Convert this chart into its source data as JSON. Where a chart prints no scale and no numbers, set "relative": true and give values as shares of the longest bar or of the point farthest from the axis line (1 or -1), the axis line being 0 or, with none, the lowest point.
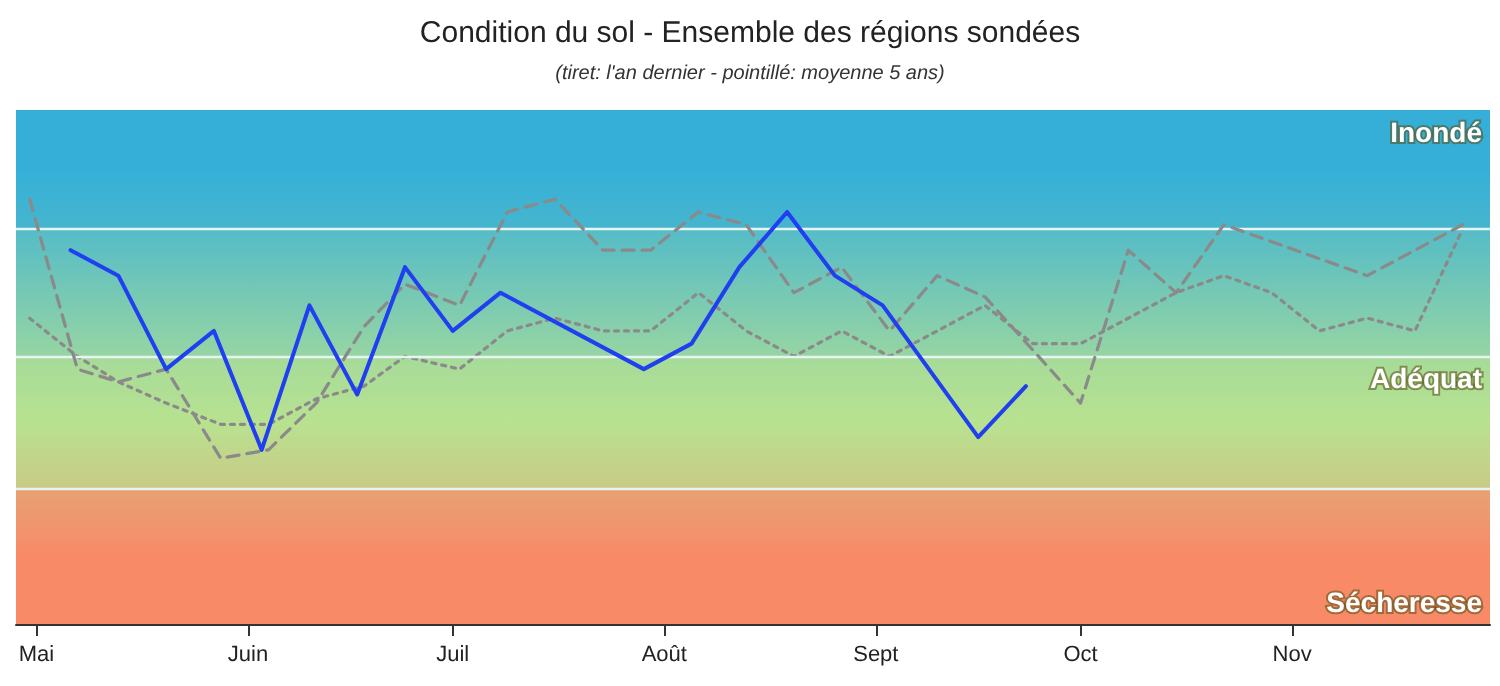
{
  "chart_data": {
    "type": "line",
    "title": "Condition du sol - Ensemble des régions sondées",
    "subtitle": "(tiret: l'an dernier - pointillé: moyenne 5 ans)",
    "relative": true,
    "marker": "none",
    "grid": false,
    "xlim": [
      "--04-28",
      "--11-30"
    ],
    "xticks": [
      {
        "value": "--05-01",
        "label": "Mai"
      },
      {
        "value": "--06-01",
        "label": "Juin"
      },
      {
        "value": "--07-01",
        "label": "Juil"
      },
      {
        "value": "--08-01",
        "label": "Août"
      },
      {
        "value": "--09-01",
        "label": "Sept"
      },
      {
        "value": "--10-01",
        "label": "Oct"
      },
      {
        "value": "--11-01",
        "label": "Nov"
      }
    ],
    "bands": [
      {
        "axis": "y",
        "from": 0.93,
        "to": 1.21,
        "label": "Inondé",
        "color": "#36b0d8"
      },
      {
        "axis": "y",
        "from": 0.32,
        "to": 0.63,
        "label": "Adéquat",
        "color": "#b8e290"
      },
      {
        "axis": "y",
        "from": 0,
        "to": 0.32,
        "label": "Sécheresse",
        "color": "#f98a68"
      }
    ],
    "ref_lines": [
      {
        "axis": "y",
        "value": 0.93,
        "color": "#e8f4f4"
      },
      {
        "axis": "y",
        "value": 0.63,
        "color": "#e8f4f4"
      },
      {
        "axis": "y",
        "value": 0.32,
        "color": "#e8f4f4"
      }
    ],
    "series": [
      {
        "color": "#1f3ff0",
        "line_style": "solid",
        "x": [
          "--05-06",
          "--05-13",
          "--05-20",
          "--05-27",
          "--06-03",
          "--06-10",
          "--06-17",
          "--06-24",
          "--07-01",
          "--07-08",
          "--07-29",
          "--08-05",
          "--08-12",
          "--08-19",
          "--08-26",
          "--09-02",
          "--09-16",
          "--09-23"
        ],
        "values": [
          0.88,
          0.82,
          0.6,
          0.69,
          0.41,
          0.75,
          0.54,
          0.84,
          0.69,
          0.78,
          0.6,
          0.66,
          0.84,
          0.97,
          0.82,
          0.75,
          0.44,
          0.56
        ]
      },
      {
        "color": "#8a8a8a",
        "line_style": "dashed",
        "x": [
          "--04-30",
          "--05-07",
          "--05-13",
          "--05-20",
          "--05-28",
          "--06-04",
          "--06-11",
          "--06-18",
          "--06-24",
          "--07-02",
          "--07-09",
          "--07-16",
          "--07-23",
          "--07-30",
          "--08-06",
          "--08-13",
          "--08-20",
          "--08-27",
          "--09-03",
          "--09-10",
          "--09-17",
          "--10-01",
          "--10-08",
          "--10-15",
          "--10-22",
          "--11-12",
          "--11-26"
        ],
        "values": [
          1.0,
          0.6,
          0.57,
          0.6,
          0.39,
          0.41,
          0.52,
          0.7,
          0.8,
          0.75,
          0.97,
          1.0,
          0.88,
          0.88,
          0.97,
          0.94,
          0.78,
          0.84,
          0.69,
          0.82,
          0.77,
          0.52,
          0.88,
          0.78,
          0.94,
          0.82,
          0.94
        ]
      },
      {
        "color": "#8a8a8a",
        "line_style": "dotted",
        "x": [
          "--04-30",
          "--05-07",
          "--05-13",
          "--05-20",
          "--05-28",
          "--06-04",
          "--06-11",
          "--06-18",
          "--06-24",
          "--07-02",
          "--07-09",
          "--07-16",
          "--07-23",
          "--07-30",
          "--08-06",
          "--08-13",
          "--08-20",
          "--08-27",
          "--09-03",
          "--09-10",
          "--09-17",
          "--09-24",
          "--10-01",
          "--10-15",
          "--10-22",
          "--10-29",
          "--11-05",
          "--11-12",
          "--11-19",
          "--11-26"
        ],
        "values": [
          0.72,
          0.63,
          0.57,
          0.52,
          0.47,
          0.47,
          0.53,
          0.56,
          0.63,
          0.6,
          0.69,
          0.72,
          0.69,
          0.69,
          0.78,
          0.69,
          0.63,
          0.69,
          0.63,
          0.69,
          0.75,
          0.66,
          0.66,
          0.78,
          0.82,
          0.78,
          0.69,
          0.72,
          0.69,
          0.93
        ]
      }
    ]
  }
}
